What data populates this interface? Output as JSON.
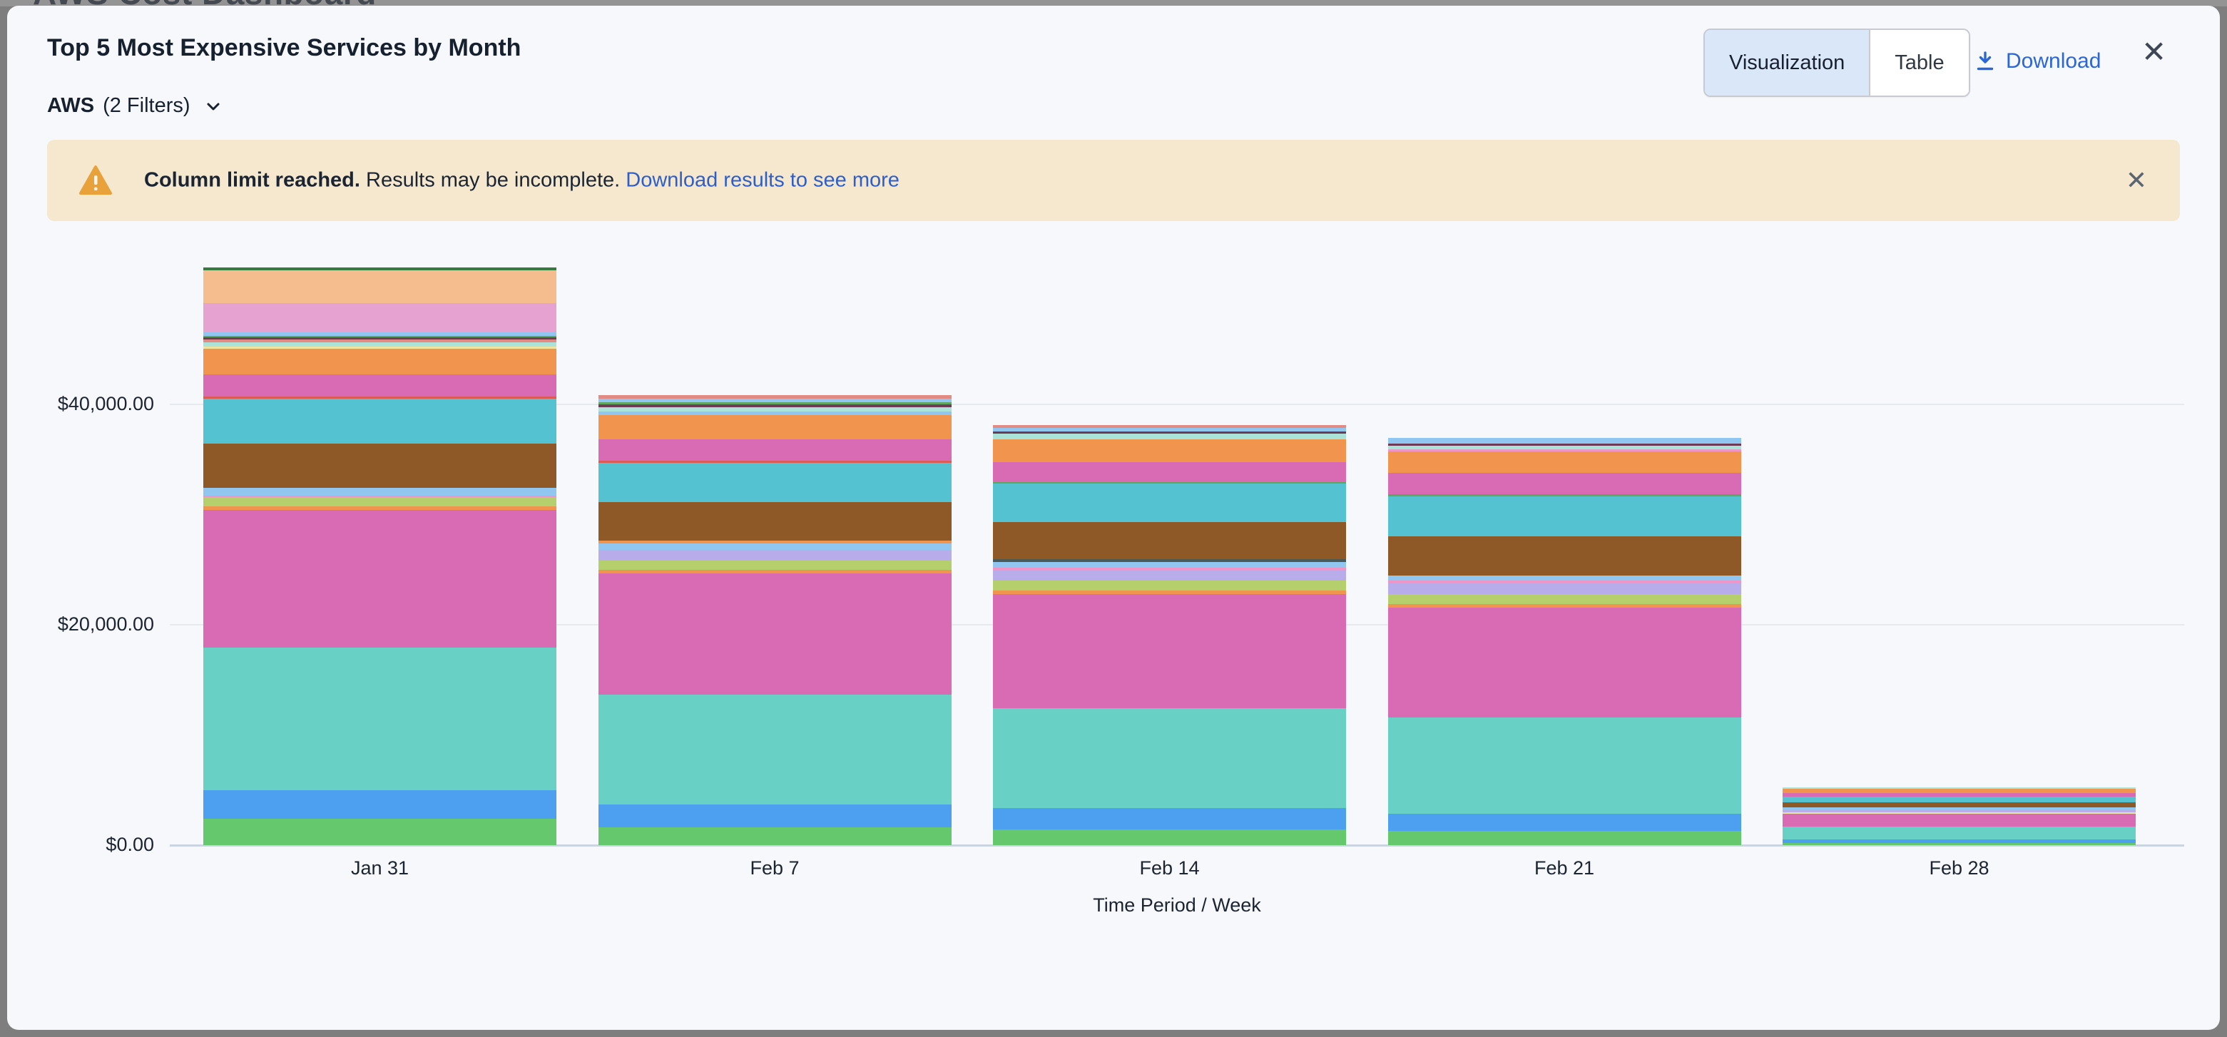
{
  "background_page": {
    "title": "AWS Cost Dashboard"
  },
  "header": {
    "title": "Top 5 Most Expensive Services by Month",
    "view_toggle": {
      "options": [
        "Visualization",
        "Table"
      ],
      "selected": "Visualization"
    },
    "download_label": "Download",
    "close_icon": "✕"
  },
  "filter": {
    "label": "AWS",
    "detail": "(2 Filters)",
    "chevron_icon": "chevron-down"
  },
  "banner": {
    "bold": "Column limit reached.",
    "text": " Results may be incomplete. ",
    "link": "Download results to see more",
    "close_icon": "✕",
    "background": "#f5e8ce",
    "icon_color": "#e9a23b"
  },
  "chart_data": {
    "type": "bar",
    "subtype": "stacked",
    "categories": [
      "Jan 31",
      "Feb 7",
      "Feb 14",
      "Feb 21",
      "Feb 28"
    ],
    "xlabel": "Time Period / Week",
    "ylabel": "",
    "ytick_labels": [
      "$40,000.00",
      "$20,000.00",
      "$0.00"
    ],
    "ytick_values": [
      40000,
      20000,
      0
    ],
    "ylim": [
      0,
      52600
    ],
    "grid": true,
    "legend_visible": false,
    "currency": "USD",
    "palette": {
      "green": "#66c86d",
      "blue": "#4da0ef",
      "teal": "#68d0c5",
      "magenta": "#d96ab4",
      "orange": "#f0944e",
      "yellowgreen": "#b4cf6c",
      "lavender": "#b8adea",
      "lightblue": "#90c6f0",
      "pink": "#f095c8",
      "brown": "#8f5827",
      "cyan": "#55c2d2",
      "red": "#dc5b55",
      "yellow": "#f2e2a0",
      "mint": "#abe3d9",
      "salmon": "#e28b85",
      "maroon": "#6e3a55",
      "greenmed": "#5fa75f",
      "orchid": "#e6a3d1",
      "peach": "#f5bd8e",
      "darkgreen": "#367a3e",
      "slate": "#4a5a57"
    },
    "bars": [
      {
        "category": "Jan 31",
        "total": 52460,
        "segments": [
          {
            "color": "green",
            "value": 2400
          },
          {
            "color": "blue",
            "value": 2600
          },
          {
            "color": "teal",
            "value": 12900
          },
          {
            "color": "magenta",
            "value": 12500
          },
          {
            "color": "orange",
            "value": 320
          },
          {
            "color": "yellowgreen",
            "value": 840
          },
          {
            "color": "pink",
            "value": 190
          },
          {
            "color": "lightblue",
            "value": 710
          },
          {
            "color": "brown",
            "value": 4000
          },
          {
            "color": "cyan",
            "value": 4050
          },
          {
            "color": "red",
            "value": 190
          },
          {
            "color": "magenta",
            "value": 2000
          },
          {
            "color": "orange",
            "value": 2330
          },
          {
            "color": "yellow",
            "value": 190
          },
          {
            "color": "mint",
            "value": 450
          },
          {
            "color": "salmon",
            "value": 260
          },
          {
            "color": "maroon",
            "value": 190
          },
          {
            "color": "greenmed",
            "value": 130
          },
          {
            "color": "lightblue",
            "value": 320
          },
          {
            "color": "orchid",
            "value": 2650
          },
          {
            "color": "peach",
            "value": 2980
          },
          {
            "color": "darkgreen",
            "value": 260
          }
        ]
      },
      {
        "category": "Feb 7",
        "total": 40850,
        "segments": [
          {
            "color": "green",
            "value": 1620
          },
          {
            "color": "blue",
            "value": 2070
          },
          {
            "color": "teal",
            "value": 10000
          },
          {
            "color": "magenta",
            "value": 11000
          },
          {
            "color": "orange",
            "value": 320
          },
          {
            "color": "yellowgreen",
            "value": 840
          },
          {
            "color": "lavender",
            "value": 970
          },
          {
            "color": "lightblue",
            "value": 580
          },
          {
            "color": "orange",
            "value": 260
          },
          {
            "color": "brown",
            "value": 3500
          },
          {
            "color": "cyan",
            "value": 3560
          },
          {
            "color": "red",
            "value": 190
          },
          {
            "color": "magenta",
            "value": 1940
          },
          {
            "color": "orange",
            "value": 2200
          },
          {
            "color": "lightblue",
            "value": 320
          },
          {
            "color": "mint",
            "value": 390
          },
          {
            "color": "maroon",
            "value": 260
          },
          {
            "color": "greenmed",
            "value": 190
          },
          {
            "color": "lightblue",
            "value": 320
          },
          {
            "color": "salmon",
            "value": 320
          }
        ]
      },
      {
        "category": "Feb 14",
        "total": 38150,
        "segments": [
          {
            "color": "green",
            "value": 1420
          },
          {
            "color": "blue",
            "value": 1940
          },
          {
            "color": "teal",
            "value": 9050
          },
          {
            "color": "magenta",
            "value": 10350
          },
          {
            "color": "orange",
            "value": 320
          },
          {
            "color": "yellowgreen",
            "value": 910
          },
          {
            "color": "lavender",
            "value": 910
          },
          {
            "color": "pink",
            "value": 260
          },
          {
            "color": "lightblue",
            "value": 520
          },
          {
            "color": "slate",
            "value": 260
          },
          {
            "color": "brown",
            "value": 3360
          },
          {
            "color": "cyan",
            "value": 3490
          },
          {
            "color": "greenmed",
            "value": 190
          },
          {
            "color": "magenta",
            "value": 1810
          },
          {
            "color": "orange",
            "value": 2070
          },
          {
            "color": "mint",
            "value": 520
          },
          {
            "color": "maroon",
            "value": 190
          },
          {
            "color": "lightblue",
            "value": 320
          },
          {
            "color": "salmon",
            "value": 260
          }
        ]
      },
      {
        "category": "Feb 21",
        "total": 36950,
        "segments": [
          {
            "color": "green",
            "value": 1290
          },
          {
            "color": "blue",
            "value": 1550
          },
          {
            "color": "teal",
            "value": 8730
          },
          {
            "color": "magenta",
            "value": 10000
          },
          {
            "color": "orange",
            "value": 320
          },
          {
            "color": "yellowgreen",
            "value": 910
          },
          {
            "color": "lavender",
            "value": 970
          },
          {
            "color": "pink",
            "value": 260
          },
          {
            "color": "lightblue",
            "value": 450
          },
          {
            "color": "brown",
            "value": 3560
          },
          {
            "color": "cyan",
            "value": 3620
          },
          {
            "color": "greenmed",
            "value": 190
          },
          {
            "color": "magenta",
            "value": 1940
          },
          {
            "color": "orange",
            "value": 1940
          },
          {
            "color": "pink",
            "value": 190
          },
          {
            "color": "mint",
            "value": 320
          },
          {
            "color": "maroon",
            "value": 190
          },
          {
            "color": "lightblue",
            "value": 520
          }
        ]
      },
      {
        "category": "Feb 28",
        "total": 5220,
        "segments": [
          {
            "color": "green",
            "value": 190
          },
          {
            "color": "blue",
            "value": 320
          },
          {
            "color": "teal",
            "value": 1160
          },
          {
            "color": "magenta",
            "value": 1160
          },
          {
            "color": "yellow",
            "value": 130
          },
          {
            "color": "lavender",
            "value": 190
          },
          {
            "color": "lightblue",
            "value": 260
          },
          {
            "color": "brown",
            "value": 450
          },
          {
            "color": "cyan",
            "value": 520
          },
          {
            "color": "magenta",
            "value": 320
          },
          {
            "color": "orange",
            "value": 390
          },
          {
            "color": "mint",
            "value": 130
          }
        ]
      }
    ]
  }
}
